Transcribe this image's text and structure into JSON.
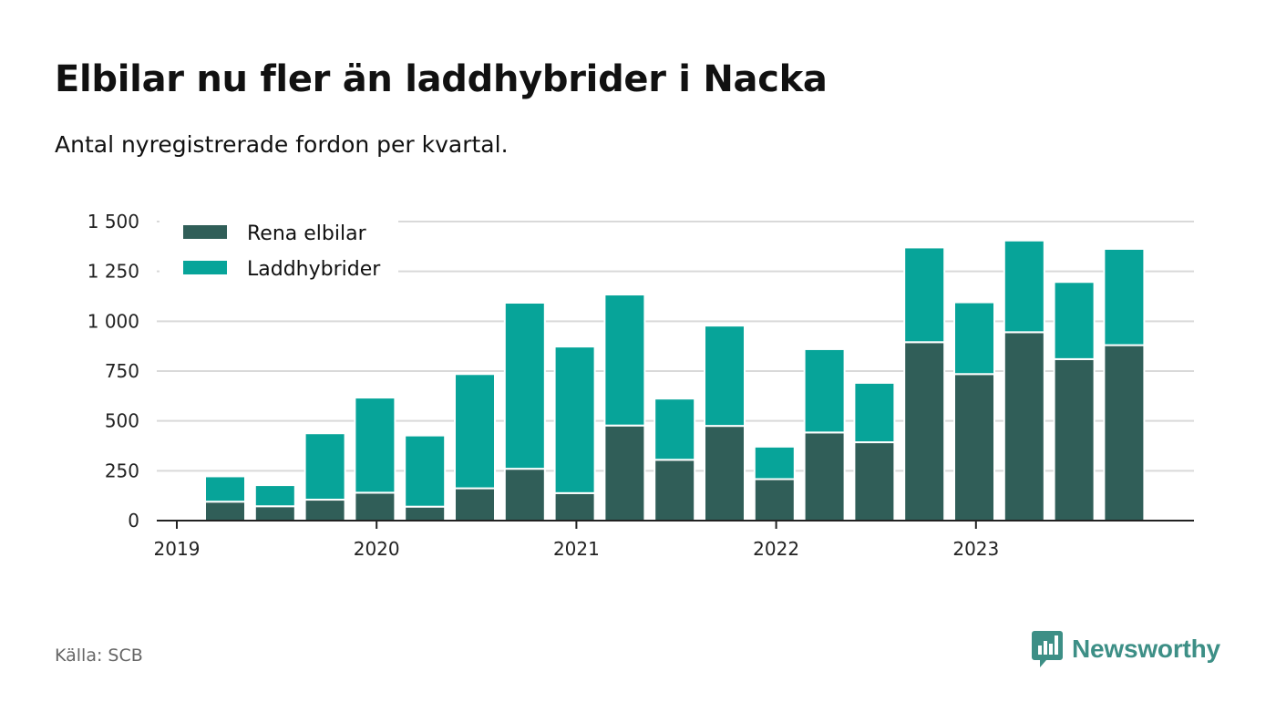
{
  "header": {
    "title": "Elbilar nu fler än laddhybrider i Nacka",
    "subtitle": "Antal nyregistrerade fordon per kvartal."
  },
  "footer": {
    "source": "Källa: SCB",
    "brand": "Newsworthy",
    "brand_color": "#3d8f86"
  },
  "chart_data": {
    "type": "bar",
    "stacked": true,
    "title": "Elbilar nu fler än laddhybrider i Nacka",
    "subtitle": "Antal nyregistrerade fordon per kvartal.",
    "xlabel": "",
    "ylabel": "",
    "ylim": [
      0,
      1500
    ],
    "y_ticks": [
      0,
      250,
      500,
      750,
      1000,
      1250,
      1500
    ],
    "y_tick_labels": [
      "0",
      "250",
      "500",
      "750",
      "1 000",
      "1 250",
      "1 500"
    ],
    "x_tick_labels": [
      "2019",
      "2020",
      "2021",
      "2022",
      "2023"
    ],
    "categories": [
      "2019 Q2",
      "2019 Q3",
      "2019 Q4",
      "2020 Q1",
      "2020 Q2",
      "2020 Q3",
      "2020 Q4",
      "2021 Q1",
      "2021 Q2",
      "2021 Q3",
      "2021 Q4",
      "2022 Q1",
      "2022 Q2",
      "2022 Q3",
      "2022 Q4",
      "2023 Q1",
      "2023 Q2",
      "2023 Q3",
      "2023 Q4"
    ],
    "legend_position": "top-left",
    "grid": true,
    "series": [
      {
        "name": "Rena elbilar",
        "color": "#305e58",
        "values": [
          95,
          72,
          105,
          140,
          70,
          162,
          260,
          138,
          477,
          305,
          475,
          208,
          442,
          393,
          895,
          735,
          945,
          810,
          880
        ]
      },
      {
        "name": "Laddhybrider",
        "color": "#07a499",
        "values": [
          127,
          106,
          333,
          477,
          357,
          573,
          833,
          735,
          657,
          307,
          503,
          163,
          418,
          298,
          475,
          360,
          460,
          387,
          483
        ]
      }
    ]
  }
}
